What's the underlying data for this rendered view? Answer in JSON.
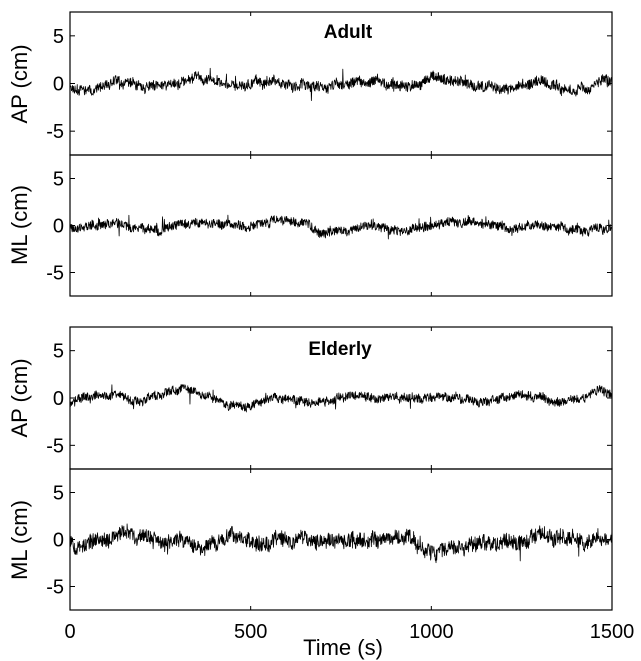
{
  "chart_data": [
    {
      "type": "line",
      "group": "Adult",
      "title": "Adult",
      "ylabel": "AP (cm)",
      "xlim": [
        0,
        1500
      ],
      "ylim": [
        -7.5,
        7.5
      ],
      "yticks": [
        -5,
        0,
        5
      ],
      "series": [
        {
          "x_range": [
            0,
            1500
          ],
          "mean": 0,
          "approx_range": [
            -1.8,
            1.6
          ]
        }
      ]
    },
    {
      "type": "line",
      "group": "Adult",
      "title": "",
      "ylabel": "ML (cm)",
      "xlim": [
        0,
        1500
      ],
      "ylim": [
        -7.5,
        7.5
      ],
      "yticks": [
        -5,
        0,
        5
      ],
      "series": [
        {
          "x_range": [
            0,
            1500
          ],
          "mean": 0,
          "approx_range": [
            -1.6,
            1.5
          ]
        }
      ]
    },
    {
      "type": "line",
      "group": "Elderly",
      "title": "Elderly",
      "ylabel": "AP (cm)",
      "xlim": [
        0,
        1500
      ],
      "ylim": [
        -7.5,
        7.5
      ],
      "yticks": [
        -5,
        0,
        5
      ],
      "series": [
        {
          "x_range": [
            0,
            1500
          ],
          "mean": 0,
          "approx_range": [
            -1.6,
            1.4
          ]
        }
      ]
    },
    {
      "type": "line",
      "group": "Elderly",
      "title": "",
      "ylabel": "ML (cm)",
      "xlim": [
        0,
        1500
      ],
      "ylim": [
        -7.5,
        7.5
      ],
      "yticks": [
        -5,
        0,
        5
      ],
      "xlabel": "Time (s)",
      "xticks": [
        0,
        500,
        1000,
        1500
      ],
      "series": [
        {
          "x_range": [
            0,
            1500
          ],
          "mean": 0,
          "approx_range": [
            -2.6,
            2.6
          ]
        }
      ]
    }
  ]
}
